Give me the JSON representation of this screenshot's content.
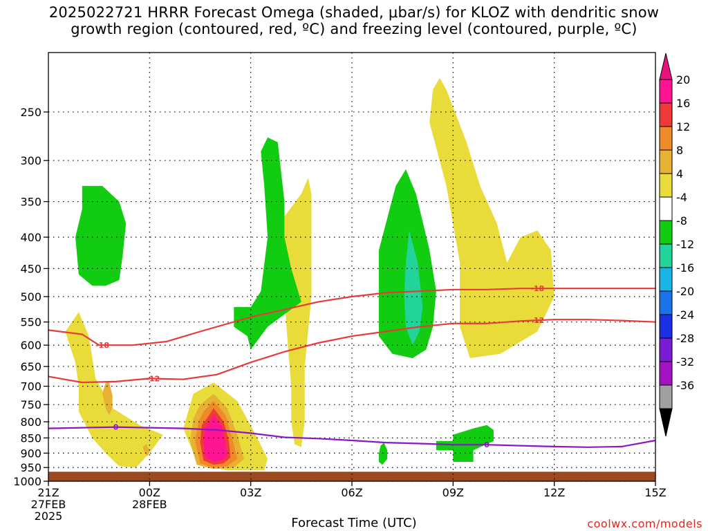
{
  "title": {
    "line1": "2025022721 HRRR Forecast Omega (shaded, μbar/s) for KLOZ with dendritic snow",
    "line2": "growth region (contoured, red, ºC) and freezing level (contoured, purple, ºC)"
  },
  "credit": "coolwx.com/models",
  "chart_data": {
    "type": "time-height contour",
    "xlabel": "Forecast Time (UTC)",
    "x_ticks": [
      {
        "hour": 0,
        "lines": [
          "21Z",
          "27FEB",
          "2025"
        ]
      },
      {
        "hour": 3,
        "lines": [
          "00Z",
          "28FEB"
        ]
      },
      {
        "hour": 6,
        "lines": [
          "03Z"
        ]
      },
      {
        "hour": 9,
        "lines": [
          "06Z"
        ]
      },
      {
        "hour": 12,
        "lines": [
          "09Z"
        ]
      },
      {
        "hour": 15,
        "lines": [
          "12Z"
        ]
      },
      {
        "hour": 18,
        "lines": [
          "15Z"
        ]
      }
    ],
    "xlim": [
      0,
      18
    ],
    "y_ticks": [
      250,
      300,
      350,
      400,
      450,
      500,
      550,
      600,
      650,
      700,
      750,
      800,
      850,
      900,
      950,
      1000
    ],
    "ylim": [
      200,
      1000
    ],
    "y_scale": "log-pressure",
    "grid": true,
    "ground_level_hPa": 965,
    "colorbar": {
      "labels": [
        "20",
        "16",
        "12",
        "8",
        "4",
        "-4",
        "-8",
        "-12",
        "-16",
        "-20",
        "-24",
        "-28",
        "-32",
        "-36"
      ],
      "colors": [
        "#ff1493",
        "#f03a3a",
        "#ee8a28",
        "#e7b234",
        "#e9dc3a",
        "#ffffff",
        "#11cc11",
        "#22d39a",
        "#18b5e6",
        "#1a73ea",
        "#1b2fe4",
        "#7a1cd4",
        "#a313c4",
        "#a0a0a0",
        "#000000"
      ],
      "top_color": "#e8127e",
      "bottom_color": "#000000"
    },
    "shaded_regions": [
      {
        "level": "4",
        "color": "#e9dc3a",
        "points": [
          [
            0.6,
            560
          ],
          [
            0.9,
            530
          ],
          [
            1.2,
            580
          ],
          [
            1.4,
            680
          ],
          [
            1.9,
            760
          ],
          [
            2.7,
            810
          ],
          [
            3.4,
            840
          ],
          [
            3.0,
            900
          ],
          [
            2.6,
            950
          ],
          [
            2.1,
            945
          ],
          [
            1.7,
            900
          ],
          [
            1.3,
            850
          ],
          [
            0.9,
            770
          ],
          [
            0.9,
            700
          ],
          [
            0.8,
            640
          ],
          [
            0.5,
            570
          ]
        ]
      },
      {
        "level": "4",
        "color": "#e9dc3a",
        "points": [
          [
            4.3,
            720
          ],
          [
            4.9,
            690
          ],
          [
            5.6,
            740
          ],
          [
            6.1,
            830
          ],
          [
            6.5,
            920
          ],
          [
            6.4,
            960
          ],
          [
            5.3,
            960
          ],
          [
            4.9,
            950
          ],
          [
            4.3,
            900
          ],
          [
            4.0,
            820
          ]
        ]
      },
      {
        "level": "4",
        "color": "#e9dc3a",
        "points": [
          [
            7.5,
            340
          ],
          [
            7.7,
            320
          ],
          [
            7.8,
            340
          ],
          [
            7.8,
            500
          ],
          [
            7.6,
            650
          ],
          [
            7.6,
            800
          ],
          [
            7.5,
            880
          ],
          [
            7.3,
            870
          ],
          [
            7.2,
            800
          ],
          [
            7.2,
            700
          ],
          [
            7.1,
            600
          ],
          [
            7.0,
            500
          ],
          [
            7.0,
            370
          ]
        ]
      },
      {
        "level": "4",
        "color": "#e9dc3a",
        "points": [
          [
            11.4,
            230
          ],
          [
            11.6,
            220
          ],
          [
            11.8,
            230
          ],
          [
            12.4,
            280
          ],
          [
            12.8,
            330
          ],
          [
            13.3,
            380
          ],
          [
            13.6,
            440
          ],
          [
            14.0,
            400
          ],
          [
            14.5,
            390
          ],
          [
            14.9,
            420
          ],
          [
            15.0,
            500
          ],
          [
            14.5,
            570
          ],
          [
            13.4,
            620
          ],
          [
            12.5,
            630
          ],
          [
            12.2,
            560
          ],
          [
            12.2,
            440
          ],
          [
            11.8,
            330
          ],
          [
            11.3,
            260
          ]
        ]
      },
      {
        "level": "8",
        "color": "#e7b234",
        "points": [
          [
            1.8,
            690
          ],
          [
            1.9,
            725
          ],
          [
            1.9,
            760
          ],
          [
            1.8,
            780
          ],
          [
            1.7,
            760
          ],
          [
            1.6,
            720
          ],
          [
            1.7,
            690
          ]
        ]
      },
      {
        "level": "8",
        "color": "#e7b234",
        "points": [
          [
            2.9,
            870
          ],
          [
            3.0,
            890
          ],
          [
            2.95,
            910
          ],
          [
            2.85,
            900
          ],
          [
            2.8,
            880
          ]
        ]
      },
      {
        "level": "8",
        "color": "#e7b234",
        "points": [
          [
            4.5,
            750
          ],
          [
            4.9,
            720
          ],
          [
            5.3,
            760
          ],
          [
            5.6,
            840
          ],
          [
            5.8,
            920
          ],
          [
            5.5,
            950
          ],
          [
            4.9,
            955
          ],
          [
            4.4,
            940
          ],
          [
            4.2,
            860
          ],
          [
            4.3,
            790
          ]
        ]
      },
      {
        "level": "12",
        "color": "#ee8a28",
        "points": [
          [
            4.6,
            770
          ],
          [
            4.9,
            740
          ],
          [
            5.25,
            780
          ],
          [
            5.45,
            850
          ],
          [
            5.6,
            920
          ],
          [
            5.3,
            945
          ],
          [
            4.9,
            950
          ],
          [
            4.5,
            935
          ],
          [
            4.35,
            860
          ],
          [
            4.45,
            800
          ]
        ]
      },
      {
        "level": "16",
        "color": "#f03a3a",
        "points": [
          [
            4.7,
            790
          ],
          [
            4.9,
            760
          ],
          [
            5.2,
            800
          ],
          [
            5.35,
            860
          ],
          [
            5.4,
            915
          ],
          [
            5.2,
            935
          ],
          [
            4.9,
            940
          ],
          [
            4.6,
            925
          ],
          [
            4.5,
            865
          ],
          [
            4.55,
            810
          ]
        ]
      },
      {
        "level": "20",
        "color": "#ff1493",
        "points": [
          [
            4.75,
            805
          ],
          [
            4.9,
            780
          ],
          [
            5.15,
            815
          ],
          [
            5.25,
            870
          ],
          [
            5.3,
            905
          ],
          [
            5.15,
            925
          ],
          [
            4.9,
            930
          ],
          [
            4.65,
            915
          ],
          [
            4.6,
            865
          ],
          [
            4.65,
            820
          ]
        ]
      },
      {
        "level": "-4",
        "color": "#11cc11",
        "points": [
          [
            1.0,
            330
          ],
          [
            1.6,
            330
          ],
          [
            2.1,
            350
          ],
          [
            2.3,
            380
          ],
          [
            2.2,
            430
          ],
          [
            2.1,
            470
          ],
          [
            1.7,
            480
          ],
          [
            1.3,
            480
          ],
          [
            0.9,
            460
          ],
          [
            0.8,
            400
          ],
          [
            1.0,
            360
          ]
        ]
      },
      {
        "level": "-4",
        "color": "#11cc11",
        "points": [
          [
            5.5,
            520
          ],
          [
            6.0,
            520
          ],
          [
            6.3,
            490
          ],
          [
            6.5,
            400
          ],
          [
            6.4,
            330
          ],
          [
            6.3,
            290
          ],
          [
            6.5,
            275
          ],
          [
            6.8,
            280
          ],
          [
            7.0,
            350
          ],
          [
            7.0,
            400
          ],
          [
            7.2,
            450
          ],
          [
            7.5,
            510
          ],
          [
            6.5,
            560
          ],
          [
            6.0,
            610
          ],
          [
            5.9,
            580
          ],
          [
            5.5,
            560
          ]
        ]
      },
      {
        "level": "-4",
        "color": "#11cc11",
        "points": [
          [
            9.8,
            420
          ],
          [
            10.3,
            330
          ],
          [
            10.6,
            310
          ],
          [
            10.9,
            340
          ],
          [
            11.3,
            420
          ],
          [
            11.5,
            490
          ],
          [
            11.4,
            560
          ],
          [
            11.2,
            610
          ],
          [
            10.8,
            630
          ],
          [
            10.2,
            620
          ],
          [
            9.8,
            580
          ],
          [
            9.8,
            500
          ]
        ]
      },
      {
        "level": "-4",
        "color": "#11cc11",
        "points": [
          [
            9.85,
            875
          ],
          [
            9.95,
            865
          ],
          [
            10.05,
            890
          ],
          [
            10.05,
            920
          ],
          [
            9.9,
            940
          ],
          [
            9.8,
            930
          ],
          [
            9.8,
            900
          ]
        ]
      },
      {
        "level": "-4",
        "color": "#11cc11",
        "points": [
          [
            11.5,
            860
          ],
          [
            12.0,
            860
          ],
          [
            12.0,
            840
          ],
          [
            12.6,
            820
          ],
          [
            13.0,
            810
          ],
          [
            13.2,
            825
          ],
          [
            13.2,
            860
          ],
          [
            12.6,
            890
          ],
          [
            12.6,
            930
          ],
          [
            12.0,
            930
          ],
          [
            12.0,
            890
          ],
          [
            11.5,
            890
          ]
        ]
      },
      {
        "level": "-8",
        "color": "#22d39a",
        "points": [
          [
            10.7,
            390
          ],
          [
            10.95,
            440
          ],
          [
            11.1,
            520
          ],
          [
            11.0,
            570
          ],
          [
            10.8,
            600
          ],
          [
            10.6,
            560
          ],
          [
            10.55,
            500
          ],
          [
            10.6,
            440
          ]
        ]
      }
    ],
    "contours": [
      {
        "name": "-18",
        "color": "#e53b3b",
        "label_x": [
          1.6,
          14.5
        ],
        "points": [
          [
            0,
            567
          ],
          [
            1,
            576
          ],
          [
            1.5,
            600
          ],
          [
            2.5,
            600
          ],
          [
            3.5,
            592
          ],
          [
            4.5,
            570
          ],
          [
            6,
            540
          ],
          [
            7,
            525
          ],
          [
            8,
            510
          ],
          [
            9,
            500
          ],
          [
            10,
            493
          ],
          [
            11,
            490
          ],
          [
            12,
            487
          ],
          [
            13,
            487
          ],
          [
            14,
            485
          ],
          [
            15,
            485
          ],
          [
            16,
            485
          ],
          [
            18,
            485
          ]
        ]
      },
      {
        "name": "-12",
        "color": "#e53b3b",
        "label_x": [
          3.1,
          14.5
        ],
        "points": [
          [
            0,
            675
          ],
          [
            1,
            690
          ],
          [
            2,
            688
          ],
          [
            3,
            680
          ],
          [
            4,
            682
          ],
          [
            5,
            670
          ],
          [
            6,
            640
          ],
          [
            7,
            615
          ],
          [
            8,
            595
          ],
          [
            9,
            580
          ],
          [
            10,
            570
          ],
          [
            11,
            560
          ],
          [
            12,
            553
          ],
          [
            13,
            553
          ],
          [
            14,
            548
          ],
          [
            15,
            545
          ],
          [
            16,
            545
          ],
          [
            17,
            547
          ],
          [
            18,
            550
          ]
        ]
      },
      {
        "name": "0",
        "color": "#8a16c8",
        "label_x": [
          2.0,
          13.0
        ],
        "points": [
          [
            0,
            820
          ],
          [
            1,
            818
          ],
          [
            2,
            816
          ],
          [
            3,
            818
          ],
          [
            4,
            820
          ],
          [
            5,
            825
          ],
          [
            6,
            835
          ],
          [
            7,
            848
          ],
          [
            8,
            852
          ],
          [
            9,
            858
          ],
          [
            10,
            865
          ],
          [
            11,
            868
          ],
          [
            12,
            872
          ],
          [
            13,
            872
          ],
          [
            14,
            875
          ],
          [
            15,
            878
          ],
          [
            16,
            880
          ],
          [
            17,
            878
          ],
          [
            18,
            858
          ]
        ]
      }
    ]
  }
}
